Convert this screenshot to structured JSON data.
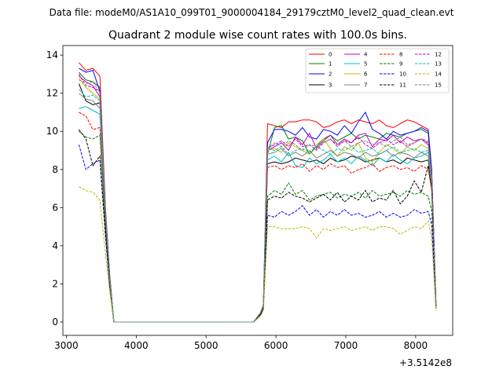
{
  "suptitle": "Data file: modeM0/AS1A10_099T01_9000004184_29179cztM0_level2_quad_clean.evt",
  "chart_data": {
    "type": "line",
    "title": "Quadrant 2 module wise count rates with 100.0s bins.",
    "xlabel": "",
    "ylabel": "",
    "x_offset_label": "+3.5142e8",
    "xlim": [
      2950,
      8530
    ],
    "ylim": [
      -0.7,
      14.5
    ],
    "xticks": [
      3000,
      4000,
      5000,
      6000,
      7000,
      8000
    ],
    "yticks": [
      0,
      2,
      4,
      6,
      8,
      10,
      12,
      14
    ],
    "grid": false,
    "legend_position": "top-right",
    "legend_columns": 4,
    "x": [
      3180,
      3280,
      3380,
      3480,
      3560,
      3620,
      3680,
      3780,
      3880,
      3980,
      4080,
      4180,
      4280,
      4380,
      4480,
      4580,
      4680,
      4780,
      4880,
      4980,
      5080,
      5180,
      5280,
      5380,
      5480,
      5580,
      5680,
      5780,
      5820,
      5880,
      5980,
      6080,
      6180,
      6280,
      6380,
      6480,
      6580,
      6680,
      6780,
      6880,
      6980,
      7080,
      7180,
      7280,
      7380,
      7480,
      7580,
      7680,
      7780,
      7880,
      7980,
      8080,
      8180,
      8230,
      8290
    ],
    "series": [
      {
        "name": "0",
        "color": "#ff0000",
        "dash": "solid",
        "values": [
          13.6,
          13.2,
          13.3,
          12.9,
          6.0,
          2.5,
          0,
          0,
          0,
          0,
          0,
          0,
          0,
          0,
          0,
          0,
          0,
          0,
          0,
          0,
          0,
          0,
          0,
          0,
          0,
          0,
          0,
          0.5,
          0.9,
          10.4,
          10.3,
          10.2,
          10.5,
          10.5,
          10.6,
          10.6,
          10.5,
          10.2,
          10.3,
          10.5,
          10.6,
          10.4,
          10.6,
          10.5,
          10.4,
          10.6,
          10.3,
          10.2,
          10.4,
          10.6,
          10.5,
          10.3,
          10.1,
          8.0,
          1.0
        ]
      },
      {
        "name": "1",
        "color": "#008000",
        "dash": "solid",
        "values": [
          13.1,
          12.7,
          12.6,
          12.3,
          5.8,
          2.3,
          0,
          0,
          0,
          0,
          0,
          0,
          0,
          0,
          0,
          0,
          0,
          0,
          0,
          0,
          0,
          0,
          0,
          0,
          0,
          0,
          0,
          0.5,
          0.9,
          8.8,
          10.2,
          10.3,
          9.6,
          9.7,
          9.5,
          8.8,
          9.2,
          9.6,
          9.8,
          9.5,
          9.7,
          9.9,
          9.6,
          9.8,
          9.7,
          9.6,
          9.9,
          9.8,
          9.7,
          9.9,
          10.0,
          10.1,
          9.9,
          7.8,
          0.9
        ]
      },
      {
        "name": "2",
        "color": "#0000ff",
        "dash": "solid",
        "values": [
          13.3,
          13.1,
          13.2,
          12.1,
          5.8,
          2.4,
          0,
          0,
          0,
          0,
          0,
          0,
          0,
          0,
          0,
          0,
          0,
          0,
          0,
          0,
          0,
          0,
          0,
          0,
          0,
          0,
          0,
          0.5,
          0.9,
          9.4,
          10.1,
          10.1,
          10.0,
          9.8,
          10.2,
          9.7,
          9.6,
          10.1,
          10.0,
          9.8,
          10.3,
          9.9,
          10.5,
          11.0,
          10.1,
          9.9,
          9.6,
          10.0,
          9.8,
          9.9,
          10.0,
          10.2,
          10.0,
          7.9,
          1.0
        ]
      },
      {
        "name": "3",
        "color": "#000000",
        "dash": "solid",
        "values": [
          12.5,
          11.6,
          11.4,
          11.5,
          5.6,
          2.3,
          0,
          0,
          0,
          0,
          0,
          0,
          0,
          0,
          0,
          0,
          0,
          0,
          0,
          0,
          0,
          0,
          0,
          0,
          0,
          0,
          0,
          0.5,
          0.8,
          8.3,
          8.4,
          8.3,
          8.4,
          8.6,
          8.5,
          8.4,
          8.5,
          8.3,
          8.6,
          8.4,
          8.5,
          8.7,
          8.6,
          8.4,
          8.5,
          8.6,
          8.4,
          8.5,
          8.3,
          8.6,
          8.5,
          8.4,
          8.5,
          7.2,
          0.8
        ]
      },
      {
        "name": "4",
        "color": "#bf00bf",
        "dash": "solid",
        "values": [
          12.9,
          12.6,
          12.4,
          11.8,
          5.7,
          2.3,
          0,
          0,
          0,
          0,
          0,
          0,
          0,
          0,
          0,
          0,
          0,
          0,
          0,
          0,
          0,
          0,
          0,
          0,
          0,
          0,
          0,
          0.5,
          0.9,
          9.0,
          9.2,
          9.4,
          9.0,
          9.7,
          9.3,
          9.9,
          9.1,
          9.5,
          9.8,
          9.3,
          9.6,
          9.4,
          9.8,
          9.9,
          9.2,
          9.6,
          9.5,
          9.8,
          9.4,
          9.7,
          9.5,
          9.6,
          9.3,
          7.6,
          0.9
        ]
      },
      {
        "name": "5",
        "color": "#00bfbf",
        "dash": "solid",
        "values": [
          11.2,
          11.3,
          11.1,
          10.9,
          5.4,
          2.2,
          0,
          0,
          0,
          0,
          0,
          0,
          0,
          0,
          0,
          0,
          0,
          0,
          0,
          0,
          0,
          0,
          0,
          0,
          0,
          0,
          0,
          0.5,
          0.8,
          8.5,
          8.7,
          8.4,
          8.9,
          8.2,
          8.1,
          8.6,
          8.3,
          8.5,
          8.8,
          8.4,
          8.6,
          8.3,
          8.7,
          8.5,
          8.2,
          8.6,
          8.4,
          8.8,
          8.5,
          8.3,
          8.6,
          8.7,
          8.9,
          7.2,
          0.8
        ]
      },
      {
        "name": "6",
        "color": "#bfbf00",
        "dash": "solid",
        "values": [
          12.8,
          12.3,
          12.0,
          11.7,
          5.6,
          2.3,
          0,
          0,
          0,
          0,
          0,
          0,
          0,
          0,
          0,
          0,
          0,
          0,
          0,
          0,
          0,
          0,
          0,
          0,
          0,
          0,
          0,
          0.5,
          0.8,
          9.0,
          9.1,
          8.9,
          9.4,
          9.2,
          9.0,
          8.8,
          9.3,
          9.6,
          9.1,
          8.7,
          9.2,
          9.0,
          9.4,
          8.6,
          8.4,
          8.9,
          9.3,
          9.1,
          8.8,
          9.2,
          9.0,
          9.3,
          9.1,
          7.4,
          0.9
        ]
      },
      {
        "name": "7",
        "color": "#808080",
        "dash": "solid",
        "values": [
          12.0,
          11.7,
          11.6,
          11.2,
          5.5,
          2.2,
          0,
          0,
          0,
          0,
          0,
          0,
          0,
          0,
          0,
          0,
          0,
          0,
          0,
          0,
          0,
          0,
          0,
          0,
          0,
          0,
          0,
          0.5,
          0.8,
          8.8,
          8.9,
          9.1,
          8.7,
          8.9,
          8.7,
          9.0,
          8.6,
          8.8,
          9.0,
          8.7,
          8.9,
          8.8,
          8.6,
          8.9,
          8.7,
          8.8,
          9.0,
          8.7,
          8.9,
          8.8,
          8.6,
          8.9,
          8.7,
          7.2,
          0.8
        ]
      },
      {
        "name": "8",
        "color": "#ff0000",
        "dash": "dashed",
        "values": [
          11.0,
          10.8,
          10.1,
          10.2,
          5.2,
          2.1,
          0,
          0,
          0,
          0,
          0,
          0,
          0,
          0,
          0,
          0,
          0,
          0,
          0,
          0,
          0,
          0,
          0,
          0,
          0,
          0,
          0,
          0.4,
          0.8,
          8.1,
          8.2,
          8.0,
          8.2,
          8.1,
          8.3,
          7.9,
          8.2,
          8.0,
          8.3,
          8.1,
          8.2,
          7.8,
          8.0,
          8.1,
          8.3,
          7.9,
          8.1,
          8.2,
          8.0,
          8.1,
          7.9,
          8.2,
          8.0,
          6.9,
          0.8
        ]
      },
      {
        "name": "9",
        "color": "#008000",
        "dash": "dashed",
        "values": [
          10.0,
          9.7,
          9.6,
          9.8,
          4.9,
          2.0,
          0,
          0,
          0,
          0,
          0,
          0,
          0,
          0,
          0,
          0,
          0,
          0,
          0,
          0,
          0,
          0,
          0,
          0,
          0,
          0,
          0,
          0.4,
          0.7,
          6.6,
          6.9,
          6.7,
          7.3,
          6.7,
          6.9,
          6.4,
          6.6,
          6.7,
          6.8,
          6.5,
          6.7,
          6.6,
          6.8,
          6.5,
          6.9,
          6.6,
          6.7,
          6.8,
          6.6,
          6.9,
          6.7,
          6.8,
          6.6,
          5.8,
          0.7
        ]
      },
      {
        "name": "10",
        "color": "#0000ff",
        "dash": "dashed",
        "values": [
          9.3,
          8.0,
          8.3,
          8.5,
          4.5,
          1.9,
          0,
          0,
          0,
          0,
          0,
          0,
          0,
          0,
          0,
          0,
          0,
          0,
          0,
          0,
          0,
          0,
          0,
          0,
          0,
          0,
          0,
          0.4,
          0.7,
          5.6,
          5.5,
          5.8,
          5.6,
          5.8,
          6.1,
          5.6,
          5.9,
          5.5,
          5.8,
          5.6,
          5.9,
          5.6,
          5.7,
          5.5,
          5.6,
          5.8,
          5.5,
          5.7,
          5.5,
          5.6,
          5.9,
          5.7,
          5.8,
          5.1,
          0.7
        ]
      },
      {
        "name": "11",
        "color": "#000000",
        "dash": "dashed",
        "values": [
          10.1,
          9.6,
          8.2,
          8.7,
          4.7,
          1.9,
          0,
          0,
          0,
          0,
          0,
          0,
          0,
          0,
          0,
          0,
          0,
          0,
          0,
          0,
          0,
          0,
          0,
          0,
          0,
          0,
          0,
          0.4,
          0.7,
          6.4,
          6.6,
          6.5,
          6.8,
          6.6,
          6.5,
          6.3,
          6.5,
          6.7,
          6.4,
          6.8,
          6.3,
          6.6,
          6.4,
          6.9,
          6.3,
          6.5,
          6.4,
          6.9,
          6.2,
          6.6,
          7.4,
          6.8,
          8.2,
          7.0,
          0.8
        ]
      },
      {
        "name": "12",
        "color": "#bf00bf",
        "dash": "dashed",
        "values": [
          13.0,
          12.4,
          12.3,
          12.1,
          5.8,
          2.3,
          0,
          0,
          0,
          0,
          0,
          0,
          0,
          0,
          0,
          0,
          0,
          0,
          0,
          0,
          0,
          0,
          0,
          0,
          0,
          0,
          0,
          0.5,
          0.9,
          9.1,
          9.3,
          9.5,
          9.2,
          9.6,
          9.2,
          9.3,
          9.0,
          9.4,
          9.6,
          9.2,
          9.5,
          9.4,
          9.7,
          9.3,
          9.1,
          9.4,
          9.6,
          9.3,
          9.5,
          9.2,
          9.4,
          9.6,
          9.4,
          7.7,
          0.9
        ]
      },
      {
        "name": "13",
        "color": "#00bfbf",
        "dash": "dashed",
        "values": [
          12.2,
          11.8,
          11.9,
          11.6,
          5.6,
          2.2,
          0,
          0,
          0,
          0,
          0,
          0,
          0,
          0,
          0,
          0,
          0,
          0,
          0,
          0,
          0,
          0,
          0,
          0,
          0,
          0,
          0,
          0.5,
          0.8,
          9.1,
          9.0,
          9.2,
          8.8,
          9.0,
          9.1,
          8.9,
          9.2,
          9.0,
          8.8,
          9.1,
          9.0,
          9.2,
          8.9,
          9.0,
          9.1,
          8.8,
          9.0,
          9.2,
          8.9,
          9.0,
          9.1,
          8.9,
          9.0,
          7.4,
          0.9
        ]
      },
      {
        "name": "14",
        "color": "#bfbf00",
        "dash": "dashed",
        "values": [
          7.1,
          6.9,
          6.8,
          6.4,
          3.6,
          1.6,
          0,
          0,
          0,
          0,
          0,
          0,
          0,
          0,
          0,
          0,
          0,
          0,
          0,
          0,
          0,
          0,
          0,
          0,
          0,
          0,
          0,
          0.3,
          0.6,
          5.0,
          5.0,
          4.9,
          4.9,
          4.9,
          5.0,
          4.9,
          4.4,
          4.9,
          4.8,
          4.9,
          5.0,
          4.8,
          4.9,
          5.0,
          4.8,
          5.0,
          5.0,
          4.9,
          4.6,
          4.8,
          5.0,
          4.9,
          5.3,
          4.4,
          0.6
        ]
      },
      {
        "name": "15",
        "color": "#808080",
        "dash": "dashed",
        "values": [
          12.7,
          12.5,
          12.6,
          12.0,
          5.8,
          2.3,
          0,
          0,
          0,
          0,
          0,
          0,
          0,
          0,
          0,
          0,
          0,
          0,
          0,
          0,
          0,
          0,
          0,
          0,
          0,
          0,
          0,
          0.5,
          0.9,
          9.1,
          9.4,
          9.2,
          9.5,
          9.3,
          9.0,
          9.3,
          9.2,
          9.4,
          9.6,
          9.3,
          9.5,
          9.2,
          9.4,
          9.5,
          9.3,
          9.4,
          9.2,
          9.5,
          9.7,
          9.3,
          9.4,
          9.6,
          9.5,
          7.7,
          0.9
        ]
      }
    ]
  }
}
